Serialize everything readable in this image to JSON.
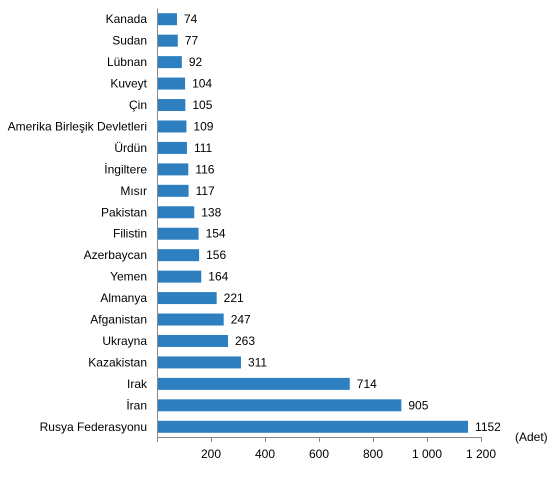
{
  "chart_data": {
    "type": "bar",
    "orientation": "horizontal",
    "title": "",
    "xlabel": "",
    "ylabel": "",
    "unit": "(Adet)",
    "bar_color": "#2E7FBF",
    "grid": false,
    "xlim": [
      0,
      1200
    ],
    "xticks": [
      200,
      400,
      600,
      800,
      1000,
      1200
    ],
    "xtick_labels": [
      "200",
      "400",
      "600",
      "800",
      "1 000",
      "1 200"
    ],
    "categories": [
      "Kanada",
      "Sudan",
      "Lübnan",
      "Kuveyt",
      "Çin",
      "Amerika Birleşik Devletleri",
      "Ürdün",
      "İngiltere",
      "Mısır",
      "Pakistan",
      "Filistin",
      "Azerbaycan",
      "Yemen",
      "Almanya",
      "Afganistan",
      "Ukrayna",
      "Kazakistan",
      "Irak",
      "İran",
      "Rusya Federasyonu"
    ],
    "values": [
      74,
      77,
      92,
      104,
      105,
      109,
      111,
      116,
      117,
      138,
      154,
      156,
      164,
      221,
      247,
      263,
      311,
      714,
      905,
      1152
    ],
    "value_labels": [
      "74",
      "77",
      "92",
      "104",
      "105",
      "109",
      "111",
      "116",
      "117",
      "138",
      "154",
      "156",
      "164",
      "221",
      "247",
      "263",
      "311",
      "714",
      "905",
      "1152"
    ]
  }
}
